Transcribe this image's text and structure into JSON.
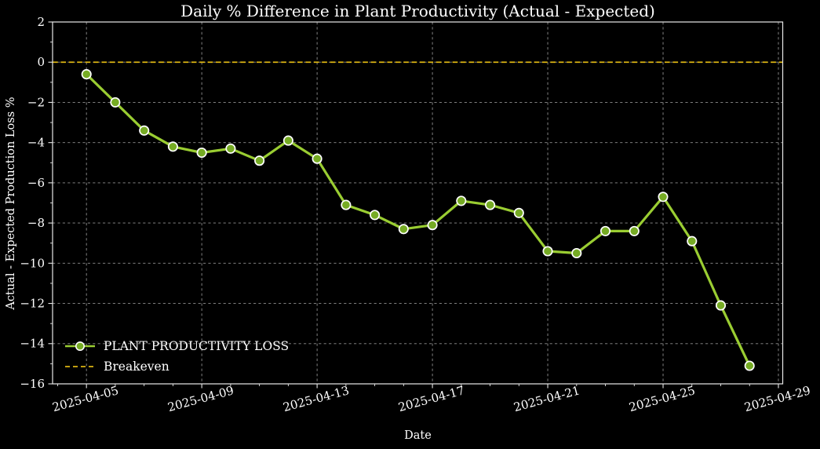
{
  "figure": {
    "title": "Daily % Difference in Plant Productivity (Actual - Expected)",
    "xlabel": "Date",
    "ylabel": "Actual - Expected Production Loss %"
  },
  "legend": {
    "items": [
      {
        "label": "PLANT PRODUCTIVITY LOSS"
      },
      {
        "label": "Breakeven"
      }
    ]
  },
  "chart_data": {
    "type": "line",
    "title": "Daily % Difference in Plant Productivity (Actual - Expected)",
    "xlabel": "Date",
    "ylabel": "Actual - Expected Production Loss %",
    "x": [
      "2025-04-05",
      "2025-04-06",
      "2025-04-07",
      "2025-04-08",
      "2025-04-09",
      "2025-04-10",
      "2025-04-11",
      "2025-04-12",
      "2025-04-13",
      "2025-04-14",
      "2025-04-15",
      "2025-04-16",
      "2025-04-17",
      "2025-04-18",
      "2025-04-19",
      "2025-04-20",
      "2025-04-21",
      "2025-04-22",
      "2025-04-23",
      "2025-04-24",
      "2025-04-25",
      "2025-04-26",
      "2025-04-27",
      "2025-04-28"
    ],
    "series": [
      {
        "name": "PLANT PRODUCTIVITY LOSS",
        "values": [
          -0.6,
          -2.0,
          -3.4,
          -4.2,
          -4.5,
          -4.3,
          -4.9,
          -3.9,
          -4.8,
          -7.1,
          -7.6,
          -8.3,
          -8.1,
          -6.9,
          -7.1,
          -7.5,
          -9.4,
          -9.5,
          -8.4,
          -8.4,
          -6.7,
          -8.9,
          -12.1,
          -15.1
        ],
        "color": "#9acd32",
        "marker_face": "#76ab24",
        "marker_edge": "#ffffff"
      }
    ],
    "breakeven": {
      "label": "Breakeven",
      "y": 0,
      "color": "#dcb512",
      "style": "dashed"
    },
    "ylim": [
      -16,
      2
    ],
    "yticks": [
      2,
      0,
      -2,
      -4,
      -6,
      -8,
      -10,
      -12,
      -14,
      -16
    ],
    "xticks": [
      "2025-04-05",
      "2025-04-09",
      "2025-04-13",
      "2025-04-17",
      "2025-04-21",
      "2025-04-25",
      "2025-04-29"
    ],
    "xtick_rotation": 15,
    "grid": true,
    "legend_position": "lower left",
    "background": "#000000",
    "text_color": "#ffffff",
    "grid_color": "#8f8f8f",
    "spine_color": "#e8e8e8"
  }
}
